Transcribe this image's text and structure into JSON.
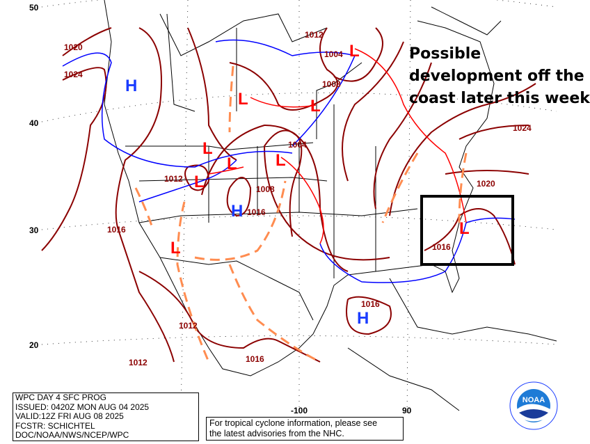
{
  "header_info": {
    "title": "WPC DAY 4 SFC PROG",
    "issued": "ISSUED: 0420Z MON AUG 04 2025",
    "valid": "VALID:12Z FRI AUG 08 2025",
    "forecaster": "FCSTR: SCHICHTEL",
    "agency": "DOC/NOAA/NWS/NCEP/WPC"
  },
  "nhc_notice": [
    "For tropical cyclone information, please see",
    "the latest advisories from the NHC."
  ],
  "annotation": {
    "text": "Possible development off the coast later this week",
    "box_color": "#000000"
  },
  "latitude_labels": [
    "50",
    "40",
    "30",
    "20"
  ],
  "longitude_labels": [
    "-100",
    "90"
  ],
  "isobar_labels": [
    "1020",
    "1024",
    "1012",
    "1004",
    "1008",
    "1004",
    "1012",
    "1008",
    "1016",
    "1016",
    "1012",
    "1012",
    "1016",
    "1016",
    "1016",
    "1020",
    "1024"
  ],
  "pressure_centers": [
    "H",
    "L",
    "L",
    "L",
    "L",
    "L",
    "L",
    "H",
    "L",
    "H",
    "L",
    "L"
  ],
  "colors": {
    "isobar": "#8b0000",
    "high": "#1a3cff",
    "low": "#ff0000",
    "cold_front": "#0000ff",
    "warm_front": "#ff0000",
    "trough": "#ff8c50",
    "borders": "#000000"
  },
  "logo": {
    "text": "NOAA",
    "agency": "National Oceanic and Atmospheric Administration"
  }
}
